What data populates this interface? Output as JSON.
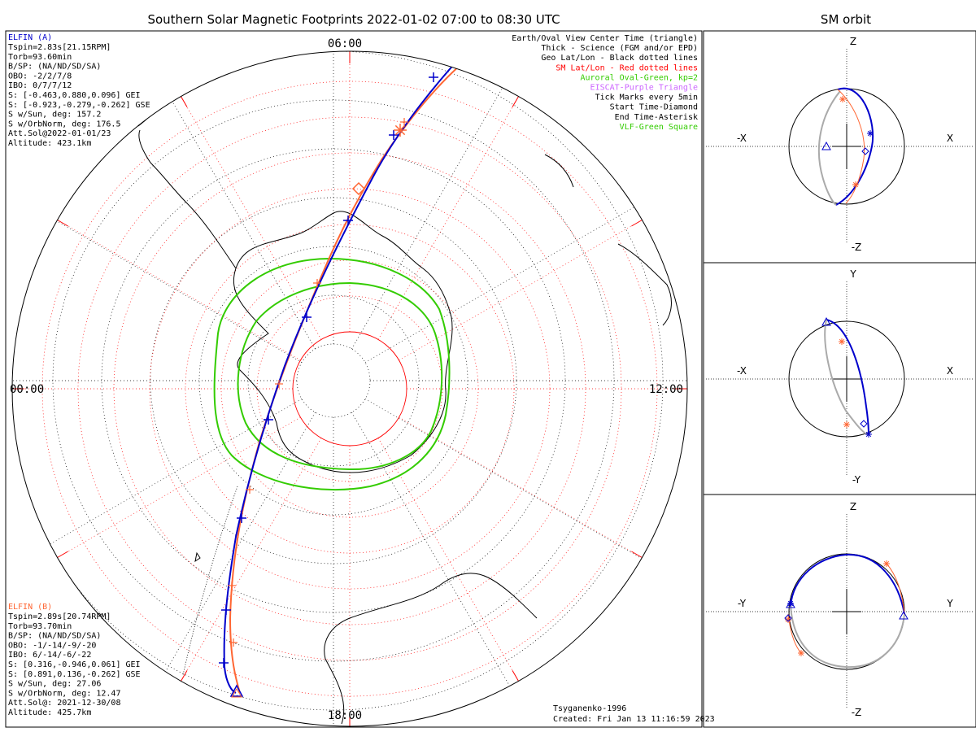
{
  "title": "Southern Solar Magnetic Footprints 2022-01-02 07:00 to 08:30 UTC",
  "orbit_title": "SM orbit",
  "mlt_labels": {
    "top": "06:00",
    "left": "00:00",
    "right": "12:00",
    "bottom": "18:00"
  },
  "elfin_a": {
    "name": "ELFIN (A)",
    "color": "#0000cc",
    "lines": [
      "Tspin=2.83s[21.15RPM]",
      "Torb=93.60min",
      "B/SP: (NA/ND/SD/SA)",
      "OBO: -2/2/7/8",
      "IBO: 0/7/7/12",
      "S: [-0.463,0.880,0.096] GEI",
      "S: [-0.923,-0.279,-0.262] GSE",
      "S w/Sun, deg: 157.2",
      "S w/OrbNorm, deg: 176.5",
      "Att.Sol@2022-01-01/23",
      "Altitude: 423.1km"
    ]
  },
  "elfin_b": {
    "name": "ELFIN (B)",
    "color": "#ff6633",
    "lines": [
      "Tspin=2.89s[20.74RPM]",
      "Torb=93.70min",
      "B/SP: (NA/ND/SD/SA)",
      "OBO: -1/-14/-9/-20",
      "IBO: 6/-14/-6/-22",
      "S: [0.316,-0.946,0.061] GEI",
      "S: [0.891,0.136,-0.262] GSE",
      "S w/Sun, deg: 27.06",
      "S w/OrbNorm, deg: 12.47",
      "Att.Sol@: 2021-12-30/08",
      "Altitude: 425.7km"
    ]
  },
  "legend": [
    {
      "text": "Earth/Oval View Center Time (triangle)",
      "color": "#000000"
    },
    {
      "text": "Thick - Science (FGM and/or EPD)",
      "color": "#000000"
    },
    {
      "text": "Geo Lat/Lon - Black dotted lines",
      "color": "#000000"
    },
    {
      "text": "SM Lat/Lon - Red dotted lines",
      "color": "#ff0000"
    },
    {
      "text": "Auroral Oval-Green, kp=2",
      "color": "#33cc00"
    },
    {
      "text": "EISCAT-Purple Triangle",
      "color": "#cc66ff"
    },
    {
      "text": "Tick Marks every 5min",
      "color": "#000000"
    },
    {
      "text": "Start Time-Diamond",
      "color": "#000000"
    },
    {
      "text": "End Time-Asterisk",
      "color": "#000000"
    },
    {
      "text": "VLF-Green Square",
      "color": "#33cc00"
    }
  ],
  "credit": "Tsyganenko-1996",
  "created": "Created: Fri Jan 13 11:16:59 2023",
  "orbit_panels": [
    {
      "top": "Z",
      "bottom": "-Z",
      "left": "-X",
      "right": "X"
    },
    {
      "top": "Y",
      "bottom": "-Y",
      "left": "-X",
      "right": "X"
    },
    {
      "top": "Z",
      "bottom": "-Z",
      "left": "-Y",
      "right": "Y"
    }
  ],
  "colors": {
    "a": "#0000cc",
    "b": "#ff6633",
    "oval": "#33cc00",
    "sm_grid": "#ff0000",
    "orbit_gray": "#aaaaaa"
  }
}
